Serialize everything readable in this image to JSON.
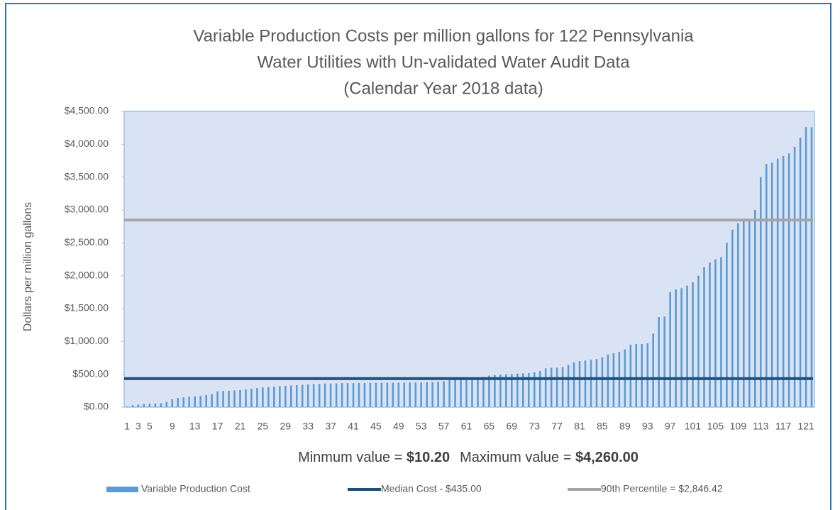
{
  "chart_data": {
    "type": "bar",
    "title": [
      "Variable Production Costs per million gallons for 122 Pennsylvania",
      "Water Utilities with Un-validated Water Audit Data",
      "(Calendar Year 2018 data)"
    ],
    "y_label": "Dollars per million gallons",
    "annotation": [
      "Minmum value = ",
      "$10.20",
      "Maximum value = ",
      "$4,260.00"
    ],
    "categories": [
      "1",
      null,
      "3",
      null,
      "5",
      null,
      null,
      null,
      "9",
      null,
      null,
      null,
      "13",
      null,
      null,
      null,
      "17",
      null,
      null,
      null,
      "21",
      null,
      null,
      null,
      "25",
      null,
      null,
      null,
      "29",
      null,
      null,
      null,
      "33",
      null,
      null,
      null,
      "37",
      null,
      null,
      null,
      "41",
      null,
      null,
      null,
      "45",
      null,
      null,
      null,
      "49",
      null,
      null,
      null,
      "53",
      null,
      null,
      null,
      "57",
      null,
      null,
      null,
      "61",
      null,
      null,
      null,
      "65",
      null,
      null,
      null,
      "69",
      null,
      null,
      null,
      "73",
      null,
      null,
      null,
      "77",
      null,
      null,
      null,
      "81",
      null,
      null,
      null,
      "85",
      null,
      null,
      null,
      "89",
      null,
      null,
      null,
      "93",
      null,
      null,
      null,
      "97",
      null,
      null,
      null,
      "101",
      null,
      null,
      null,
      "105",
      null,
      null,
      null,
      "109",
      null,
      null,
      null,
      "113",
      null,
      null,
      null,
      "117",
      null,
      null,
      null,
      "121",
      null
    ],
    "series": [
      {
        "name": "Variable Production Cost",
        "color": "#5b9bd5",
        "values": [
          10.2,
          30,
          40,
          50,
          55,
          55,
          60,
          80,
          120,
          140,
          150,
          160,
          165,
          170,
          185,
          200,
          240,
          245,
          250,
          255,
          260,
          270,
          280,
          290,
          300,
          305,
          310,
          320,
          325,
          330,
          335,
          340,
          345,
          350,
          355,
          358,
          360,
          362,
          365,
          365,
          366,
          367,
          368,
          369,
          370,
          370,
          371,
          372,
          373,
          374,
          375,
          376,
          377,
          378,
          380,
          385,
          395,
          410,
          420,
          425,
          430,
          435,
          440,
          460,
          480,
          490,
          495,
          500,
          505,
          510,
          515,
          520,
          530,
          550,
          590,
          600,
          600,
          610,
          640,
          680,
          700,
          710,
          720,
          730,
          760,
          800,
          820,
          840,
          880,
          950,
          960,
          960,
          970,
          1120,
          1370,
          1380,
          1750,
          1790,
          1810,
          1850,
          1900,
          2000,
          2130,
          2200,
          2250,
          2280,
          2500,
          2700,
          2800,
          2830,
          2840,
          3000,
          3500,
          3700,
          3720,
          3780,
          3820,
          3860,
          3960,
          4100,
          4260,
          4260
        ]
      }
    ],
    "reference_lines": [
      {
        "name": "Median Cost - $435.00",
        "color": "#1f4e79",
        "value": 435
      },
      {
        "name": "90th Percentile = $2,846.42",
        "color": "#a5a5a5",
        "value": 2846.42
      }
    ],
    "ylim": [
      0,
      4500
    ],
    "yticks": [
      {
        "value": 0,
        "label": "$0.00"
      },
      {
        "value": 500,
        "label": "$500.00"
      },
      {
        "value": 1000,
        "label": "$1,000.00"
      },
      {
        "value": 1500,
        "label": "$1,500.00"
      },
      {
        "value": 2000,
        "label": "$2,000.00"
      },
      {
        "value": 2500,
        "label": "$2,500.00"
      },
      {
        "value": 3000,
        "label": "$3,000.00"
      },
      {
        "value": 3500,
        "label": "$3,500.00"
      },
      {
        "value": 4000,
        "label": "$4,000.00"
      },
      {
        "value": 4500,
        "label": "$4,500.00"
      }
    ],
    "grid": false
  }
}
